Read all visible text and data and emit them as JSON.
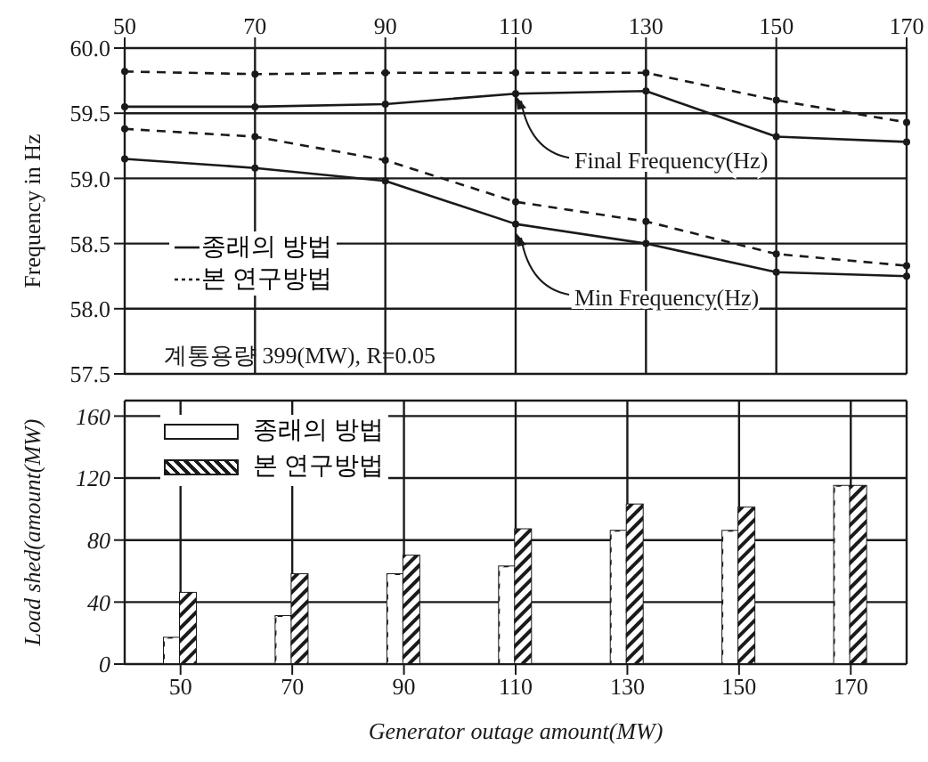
{
  "chart_data": [
    {
      "type": "line",
      "ylabel": "Frequency in Hz",
      "categories": [
        "50",
        "70",
        "90",
        "110",
        "130",
        "150",
        "170"
      ],
      "ylim": [
        57.5,
        60.0
      ],
      "yticks": [
        {
          "value": 57.5,
          "label": "57.5"
        },
        {
          "value": 58,
          "label": "58.0"
        },
        {
          "value": 58.5,
          "label": "58.5"
        },
        {
          "value": 59,
          "label": "59.0"
        },
        {
          "value": 59.5,
          "label": "59.5"
        },
        {
          "value": 60,
          "label": "60.0"
        }
      ],
      "grid": true,
      "marker": "circle",
      "legend": "bottom left",
      "series": [
        {
          "name": "종래의 방법",
          "color": "#1a1a1a",
          "line_style": "solid",
          "values": [
            59.55,
            59.55,
            59.57,
            59.65,
            59.67,
            59.32,
            59.28
          ]
        },
        {
          "name": "본 연구방법",
          "color": "#1a1a1a",
          "line_style": "dashed",
          "values": [
            59.82,
            59.8,
            59.81,
            59.81,
            59.81,
            59.6,
            59.43
          ]
        },
        {
          "color": "#1a1a1a",
          "line_style": "solid",
          "values": [
            59.15,
            59.08,
            58.98,
            58.65,
            58.5,
            58.28,
            58.25
          ]
        },
        {
          "color": "#1a1a1a",
          "line_style": "dashed",
          "values": [
            59.38,
            59.32,
            59.14,
            58.82,
            58.67,
            58.42,
            58.33
          ]
        }
      ],
      "annotations": [
        {
          "text": "Final Frequency(Hz)",
          "x": "110",
          "y": 59.65
        },
        {
          "text": "Min Frequency(Hz)",
          "x": "110",
          "y": 58.6
        },
        "계통용량 399(MW), R=0.05"
      ]
    },
    {
      "type": "bar",
      "xlabel": "Generator outage amount(MW)",
      "ylabel": "Load shed(amount(MW)",
      "categories": [
        "50",
        "70",
        "90",
        "110",
        "130",
        "150",
        "170"
      ],
      "ylim": [
        0,
        170
      ],
      "yticks": [
        0,
        40,
        80,
        120,
        160
      ],
      "grid": true,
      "legend": "top left",
      "series": [
        {
          "name": "종래의 방법",
          "color": "#ffffff",
          "values": [
            17,
            31,
            58,
            63,
            86,
            86,
            115
          ]
        },
        {
          "name": "본 연구방법",
          "color": "#1a1a1a",
          "values": [
            46,
            58,
            70,
            87,
            103,
            101,
            115
          ]
        }
      ]
    }
  ]
}
